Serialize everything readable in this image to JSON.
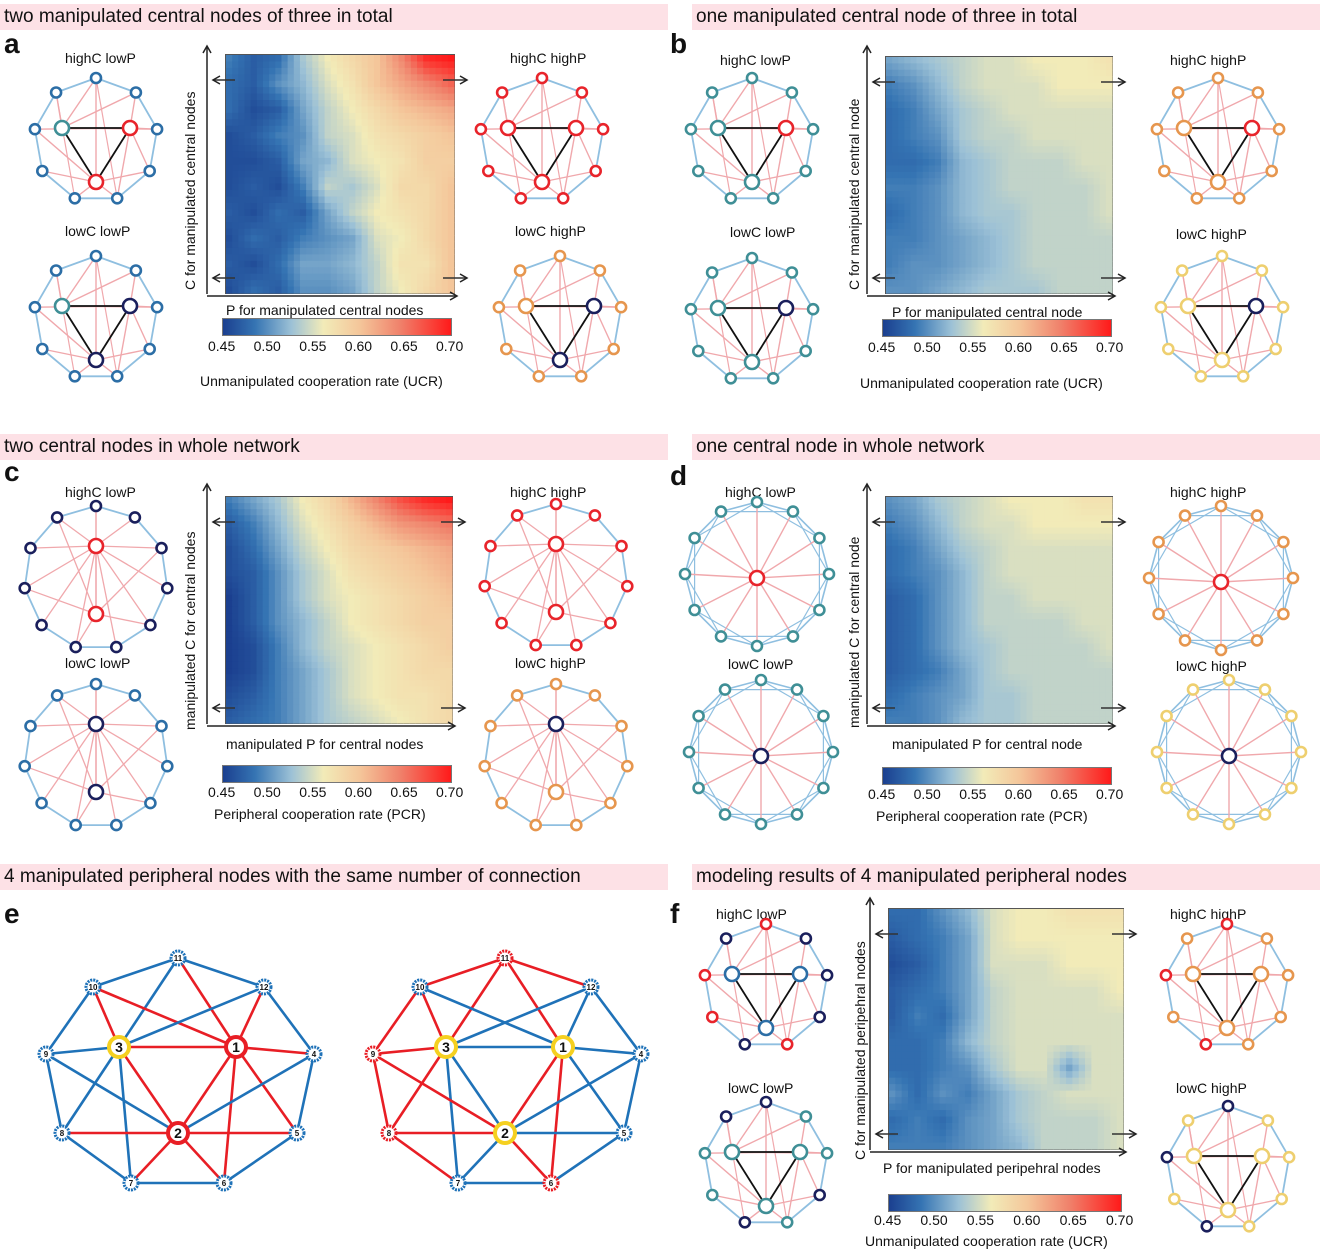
{
  "panels": {
    "a": {
      "letter": "a",
      "banner": "two manipulated central nodes of three in total",
      "xlabel": "P for manipulated central nodes",
      "ylabel": "C for manipulated central nodes",
      "cbar_title": "Unmanipulated cooperation rate (UCR)"
    },
    "b": {
      "letter": "b",
      "banner": "one manipulated central node of three in total",
      "xlabel": "P for manipulated central node",
      "ylabel": "C for manipulated central node",
      "cbar_title": "Unmanipulated cooperation rate (UCR)"
    },
    "c": {
      "letter": "c",
      "banner": "two central nodes in whole network",
      "xlabel": "manipulated P for central nodes",
      "ylabel": "manipulated C for central nodes",
      "cbar_title": "Peripheral cooperation rate (PCR)"
    },
    "d": {
      "letter": "d",
      "banner": "one central node in whole network",
      "xlabel": "manipulated P for central node",
      "ylabel": "manipulated C for central node",
      "cbar_title": "Peripheral cooperation rate (PCR)"
    },
    "e": {
      "letter": "e",
      "banner": "4 manipulated peripheral nodes with the same number of connection"
    },
    "f": {
      "letter": "f",
      "banner": "modeling results of 4 manipulated peripheral nodes",
      "xlabel": "P for manipulated peripehral nodes",
      "ylabel": "C for manipulated peripehral nodes",
      "cbar_title": "Unmanipulated cooperation rate (UCR)"
    }
  },
  "conditions": {
    "hc_lp": "highC  lowP",
    "hc_hp": "highC  highP",
    "lc_lp": "lowC  lowP",
    "lc_hp": "lowC  highP"
  },
  "colorbar_ticks": [
    "0.45",
    "0.50",
    "0.55",
    "0.60",
    "0.65",
    "0.70"
  ],
  "colors": {
    "blue_edge": "#8fbfe0",
    "red_edge": "#f0a8ac",
    "dark_edge": "#111111",
    "node_red": "#e8242b",
    "node_teal": "#3f8f96",
    "node_navy": "#1a1f5c",
    "node_orange": "#e6964e",
    "node_yellow": "#eecf6f",
    "node_blue": "#2c6ea6",
    "hub_yellow": "#f5d020",
    "e_blue": "#1f72b8",
    "e_red": "#e81e25"
  },
  "network_e": {
    "node_labels": [
      "1",
      "2",
      "3",
      "4",
      "5",
      "6",
      "7",
      "8",
      "9",
      "10",
      "11",
      "12"
    ]
  },
  "chart_data": [
    {
      "type": "heatmap",
      "panel": "a",
      "xlabel": "P for manipulated central nodes",
      "ylabel": "C for manipulated central nodes",
      "colorbar": {
        "label": "Unmanipulated cooperation rate (UCR)",
        "range": [
          0.45,
          0.7
        ]
      },
      "values": [
        [
          0.49,
          0.47,
          0.48,
          0.53,
          0.56,
          0.58,
          0.6,
          0.64,
          0.69,
          0.7
        ],
        [
          0.48,
          0.47,
          0.5,
          0.52,
          0.55,
          0.57,
          0.6,
          0.62,
          0.64,
          0.66
        ],
        [
          0.48,
          0.46,
          0.47,
          0.51,
          0.54,
          0.56,
          0.58,
          0.6,
          0.61,
          0.62
        ],
        [
          0.46,
          0.47,
          0.49,
          0.5,
          0.54,
          0.55,
          0.57,
          0.58,
          0.59,
          0.6
        ],
        [
          0.46,
          0.46,
          0.47,
          0.51,
          0.52,
          0.55,
          0.56,
          0.57,
          0.59,
          0.59
        ],
        [
          0.46,
          0.47,
          0.46,
          0.49,
          0.54,
          0.53,
          0.55,
          0.58,
          0.58,
          0.6
        ],
        [
          0.47,
          0.46,
          0.48,
          0.47,
          0.51,
          0.54,
          0.56,
          0.57,
          0.58,
          0.6
        ],
        [
          0.46,
          0.48,
          0.47,
          0.49,
          0.5,
          0.51,
          0.55,
          0.56,
          0.58,
          0.6
        ],
        [
          0.47,
          0.46,
          0.48,
          0.51,
          0.51,
          0.52,
          0.54,
          0.57,
          0.57,
          0.6
        ],
        [
          0.46,
          0.48,
          0.47,
          0.5,
          0.5,
          0.51,
          0.54,
          0.56,
          0.58,
          0.6
        ]
      ]
    },
    {
      "type": "heatmap",
      "panel": "b",
      "xlabel": "P for manipulated central node",
      "ylabel": "C for manipulated central node",
      "colorbar": {
        "label": "Unmanipulated cooperation rate (UCR)",
        "range": [
          0.45,
          0.7
        ]
      },
      "values": [
        [
          0.51,
          0.52,
          0.53,
          0.54,
          0.55,
          0.55,
          0.56,
          0.56,
          0.56,
          0.57
        ],
        [
          0.49,
          0.5,
          0.52,
          0.54,
          0.55,
          0.55,
          0.55,
          0.56,
          0.56,
          0.56
        ],
        [
          0.48,
          0.49,
          0.51,
          0.53,
          0.54,
          0.55,
          0.55,
          0.55,
          0.55,
          0.55
        ],
        [
          0.48,
          0.49,
          0.5,
          0.53,
          0.54,
          0.54,
          0.55,
          0.55,
          0.55,
          0.55
        ],
        [
          0.48,
          0.48,
          0.49,
          0.52,
          0.53,
          0.54,
          0.54,
          0.54,
          0.55,
          0.55
        ],
        [
          0.49,
          0.49,
          0.5,
          0.52,
          0.53,
          0.54,
          0.54,
          0.54,
          0.54,
          0.55
        ],
        [
          0.48,
          0.49,
          0.5,
          0.52,
          0.53,
          0.53,
          0.54,
          0.54,
          0.54,
          0.55
        ],
        [
          0.49,
          0.49,
          0.5,
          0.51,
          0.52,
          0.53,
          0.54,
          0.54,
          0.54,
          0.54
        ],
        [
          0.49,
          0.5,
          0.5,
          0.51,
          0.52,
          0.53,
          0.54,
          0.54,
          0.54,
          0.54
        ],
        [
          0.5,
          0.5,
          0.51,
          0.52,
          0.53,
          0.53,
          0.53,
          0.54,
          0.54,
          0.54
        ]
      ]
    },
    {
      "type": "heatmap",
      "panel": "c",
      "xlabel": "manipulated P for central nodes",
      "ylabel": "manipulated C for central nodes",
      "colorbar": {
        "label": "Peripheral cooperation rate (PCR)",
        "range": [
          0.45,
          0.7
        ]
      },
      "values": [
        [
          0.49,
          0.51,
          0.53,
          0.56,
          0.58,
          0.61,
          0.64,
          0.67,
          0.69,
          0.7
        ],
        [
          0.47,
          0.49,
          0.52,
          0.55,
          0.57,
          0.59,
          0.61,
          0.63,
          0.64,
          0.65
        ],
        [
          0.46,
          0.48,
          0.51,
          0.54,
          0.56,
          0.58,
          0.59,
          0.6,
          0.61,
          0.62
        ],
        [
          0.46,
          0.47,
          0.5,
          0.53,
          0.55,
          0.57,
          0.58,
          0.59,
          0.6,
          0.61
        ],
        [
          0.45,
          0.47,
          0.5,
          0.53,
          0.55,
          0.56,
          0.57,
          0.58,
          0.59,
          0.6
        ],
        [
          0.45,
          0.47,
          0.5,
          0.52,
          0.54,
          0.56,
          0.57,
          0.58,
          0.59,
          0.59
        ],
        [
          0.45,
          0.46,
          0.49,
          0.52,
          0.54,
          0.55,
          0.56,
          0.57,
          0.58,
          0.59
        ],
        [
          0.45,
          0.46,
          0.49,
          0.51,
          0.53,
          0.55,
          0.56,
          0.57,
          0.58,
          0.58
        ],
        [
          0.46,
          0.47,
          0.49,
          0.51,
          0.53,
          0.55,
          0.56,
          0.57,
          0.57,
          0.58
        ],
        [
          0.47,
          0.48,
          0.49,
          0.51,
          0.53,
          0.54,
          0.55,
          0.56,
          0.57,
          0.58
        ]
      ]
    },
    {
      "type": "heatmap",
      "panel": "d",
      "xlabel": "manipulated P for central node",
      "ylabel": "manipulated C for central node",
      "colorbar": {
        "label": "Peripheral cooperation rate (PCR)",
        "range": [
          0.45,
          0.7
        ]
      },
      "values": [
        [
          0.5,
          0.51,
          0.53,
          0.54,
          0.55,
          0.56,
          0.56,
          0.56,
          0.57,
          0.57
        ],
        [
          0.49,
          0.5,
          0.52,
          0.54,
          0.55,
          0.55,
          0.56,
          0.56,
          0.56,
          0.56
        ],
        [
          0.48,
          0.49,
          0.51,
          0.53,
          0.54,
          0.55,
          0.55,
          0.55,
          0.55,
          0.55
        ],
        [
          0.48,
          0.49,
          0.5,
          0.52,
          0.54,
          0.55,
          0.55,
          0.55,
          0.55,
          0.55
        ],
        [
          0.47,
          0.48,
          0.5,
          0.52,
          0.54,
          0.54,
          0.55,
          0.55,
          0.55,
          0.55
        ],
        [
          0.47,
          0.48,
          0.5,
          0.52,
          0.54,
          0.54,
          0.54,
          0.54,
          0.55,
          0.55
        ],
        [
          0.47,
          0.48,
          0.5,
          0.52,
          0.53,
          0.54,
          0.54,
          0.54,
          0.54,
          0.55
        ],
        [
          0.47,
          0.48,
          0.49,
          0.51,
          0.53,
          0.54,
          0.54,
          0.54,
          0.54,
          0.54
        ],
        [
          0.48,
          0.49,
          0.5,
          0.51,
          0.53,
          0.53,
          0.54,
          0.54,
          0.54,
          0.54
        ],
        [
          0.49,
          0.49,
          0.5,
          0.52,
          0.53,
          0.53,
          0.54,
          0.54,
          0.54,
          0.54
        ]
      ]
    },
    {
      "type": "heatmap",
      "panel": "f",
      "xlabel": "P for manipulated peripehral nodes",
      "ylabel": "C for manipulated peripehral nodes",
      "colorbar": {
        "label": "Unmanipulated cooperation rate (UCR)",
        "range": [
          0.45,
          0.7
        ]
      },
      "values": [
        [
          0.48,
          0.48,
          0.5,
          0.52,
          0.55,
          0.56,
          0.56,
          0.57,
          0.57,
          0.57
        ],
        [
          0.47,
          0.48,
          0.49,
          0.51,
          0.55,
          0.56,
          0.56,
          0.56,
          0.56,
          0.56
        ],
        [
          0.46,
          0.47,
          0.49,
          0.51,
          0.55,
          0.55,
          0.55,
          0.56,
          0.56,
          0.56
        ],
        [
          0.47,
          0.48,
          0.49,
          0.51,
          0.54,
          0.55,
          0.55,
          0.55,
          0.55,
          0.56
        ],
        [
          0.47,
          0.49,
          0.48,
          0.51,
          0.54,
          0.55,
          0.55,
          0.55,
          0.55,
          0.55
        ],
        [
          0.48,
          0.48,
          0.49,
          0.52,
          0.54,
          0.55,
          0.55,
          0.55,
          0.55,
          0.55
        ],
        [
          0.48,
          0.48,
          0.49,
          0.5,
          0.53,
          0.55,
          0.55,
          0.51,
          0.55,
          0.55
        ],
        [
          0.5,
          0.48,
          0.5,
          0.49,
          0.51,
          0.53,
          0.54,
          0.55,
          0.55,
          0.55
        ],
        [
          0.48,
          0.49,
          0.48,
          0.5,
          0.51,
          0.53,
          0.54,
          0.54,
          0.54,
          0.55
        ],
        [
          0.49,
          0.49,
          0.49,
          0.5,
          0.51,
          0.52,
          0.54,
          0.54,
          0.54,
          0.55
        ]
      ]
    }
  ]
}
